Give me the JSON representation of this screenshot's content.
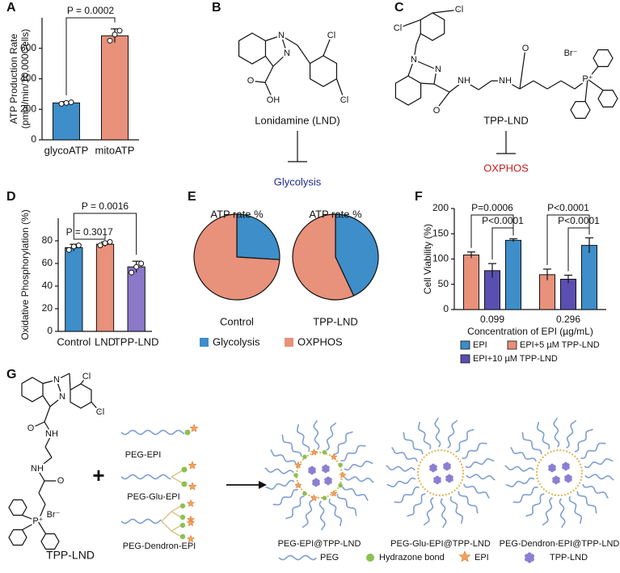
{
  "panel_labels": [
    "A",
    "B",
    "C",
    "D",
    "E",
    "F",
    "G"
  ],
  "chart_data": [
    {
      "type": "bar",
      "ylabel": [
        "ATP Production Rate",
        "(pmol/min/10,000Cells)"
      ],
      "categories": [
        "glycoATP",
        "mitoATP"
      ],
      "values": [
        242,
        682
      ],
      "errors": [
        8,
        45
      ],
      "points": [
        [
          236,
          242,
          246
        ],
        [
          650,
          690,
          715
        ]
      ],
      "colors": [
        "#3d8ec9",
        "#e8917b"
      ],
      "ylim": [
        0,
        800
      ],
      "yticks": [
        0,
        200,
        400,
        600
      ],
      "annotations": [
        "P = 0.0002"
      ]
    },
    {
      "type": "bar",
      "ylabel": "Oxidative Phosphorylation (%)",
      "categories": [
        "Control",
        "LND",
        "TPP-LND"
      ],
      "values": [
        74,
        77,
        57
      ],
      "errors": [
        3,
        2,
        5
      ],
      "points": [
        [
          72,
          75,
          76
        ],
        [
          76,
          78,
          79
        ],
        [
          52,
          57,
          60
        ]
      ],
      "colors": [
        "#3d8ec9",
        "#e8917b",
        "#8b78c9"
      ],
      "ylim": [
        0,
        100
      ],
      "yticks": [
        0,
        20,
        40,
        60,
        80
      ],
      "annotations": [
        "P = 0.3017",
        "P = 0.0016"
      ]
    },
    {
      "type": "pie",
      "categories": [
        "Glycolysis",
        "OXPHOS"
      ],
      "colors": [
        "#3d8ec9",
        "#e8917b"
      ],
      "pies": [
        {
          "title": "ATP rate %",
          "name": "Control",
          "values": [
            26,
            74
          ]
        },
        {
          "title": "ATP rate %",
          "name": "TPP-LND",
          "values": [
            43,
            57
          ]
        }
      ]
    },
    {
      "type": "grouped-bar",
      "ylabel": "Cell Viability (%)",
      "xlabel": "Concentration of EPI (µg/mL)",
      "categories": [
        "0.099",
        "0.296"
      ],
      "series": [
        {
          "name": "EPI",
          "color": "#3d8ec9",
          "values": [
            137,
            127
          ],
          "errors": [
            3,
            15
          ]
        },
        {
          "name": "EPI+5 µM TPP-LND",
          "color": "#e8917b",
          "values": [
            108,
            69
          ],
          "errors": [
            6,
            11
          ]
        },
        {
          "name": "EPI+10 µM TPP-LND",
          "color": "#5a4fb0",
          "values": [
            77,
            60
          ],
          "errors": [
            14,
            8
          ]
        }
      ],
      "ylim": [
        0,
        200
      ],
      "yticks": [
        0,
        50,
        100,
        150,
        200
      ],
      "annotations": [
        "P=0.0006",
        "P<0.0001",
        "P<0.0001",
        "P<0.0001"
      ]
    }
  ],
  "diagrams": {
    "lonidamine": {
      "atoms": [
        "N",
        "N",
        "O",
        "OH",
        "Cl",
        "Cl"
      ],
      "name": "Lonidamine (LND)",
      "target": "Glycolysis"
    },
    "tpp_lnd": {
      "atoms": [
        "Cl",
        "Cl",
        "N",
        "N",
        "O",
        "NH",
        "NH",
        "O",
        "Br⁻",
        "P⁺"
      ],
      "name": "TPP-LND",
      "target": "OXPHOS"
    },
    "scheme": {
      "atoms": [
        "Cl",
        "Cl",
        "N",
        "N",
        "O",
        "NH",
        "NH",
        "O",
        "Br⁻",
        "P⁺"
      ],
      "structure_name": "TPP-LND",
      "plus": "+",
      "polymers": [
        "PEG-EPI",
        "PEG-Glu-EPI",
        "PEG-Dendron-EPI"
      ],
      "micelles": [
        "PEG-EPI@TPP-LND",
        "PEG-Glu-EPI@TPP-LND",
        "PEG-Dendron-EPI@TPP-LND"
      ],
      "legend": [
        "PEG",
        "Hydrazone bond",
        "EPI",
        "TPP-LND"
      ]
    }
  }
}
